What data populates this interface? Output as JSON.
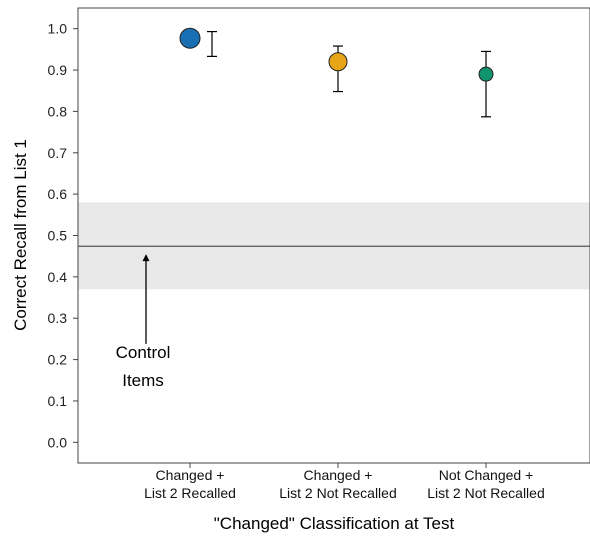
{
  "chart_data": {
    "type": "scatter",
    "xlabel": "\"Changed\" Classification at Test",
    "ylabel": "Correct Recall from List 1",
    "ylim": [
      -0.05,
      1.05
    ],
    "yticks": [
      "0.0",
      "0.1",
      "0.2",
      "0.3",
      "0.4",
      "0.5",
      "0.6",
      "0.7",
      "0.8",
      "0.9",
      "1.0"
    ],
    "grid": false,
    "categories": [
      {
        "line1": "Changed +",
        "line2": "List 2 Recalled"
      },
      {
        "line1": "Changed +",
        "line2": "List 2 Not Recalled"
      },
      {
        "line1": "Not Changed +",
        "line2": "List 2 Not Recalled"
      }
    ],
    "points": [
      {
        "category": 0,
        "value": 0.977,
        "error_low": 0.933,
        "error_high": 0.993,
        "color": "#1a6fb3",
        "size": "large"
      },
      {
        "category": 1,
        "value": 0.92,
        "error_low": 0.848,
        "error_high": 0.958,
        "color": "#e6a417",
        "size": "medium"
      },
      {
        "category": 2,
        "value": 0.89,
        "error_low": 0.787,
        "error_high": 0.945,
        "color": "#12936f",
        "size": "small"
      }
    ],
    "control": {
      "value": 0.474,
      "band_low": 0.37,
      "band_high": 0.58,
      "band_color": "#e9e9e9",
      "line_color": "#555555"
    },
    "annotation": {
      "line1": "Control",
      "line2": "Items",
      "arrow_tip_value": 0.455,
      "arrow_tail_value": 0.238
    }
  }
}
